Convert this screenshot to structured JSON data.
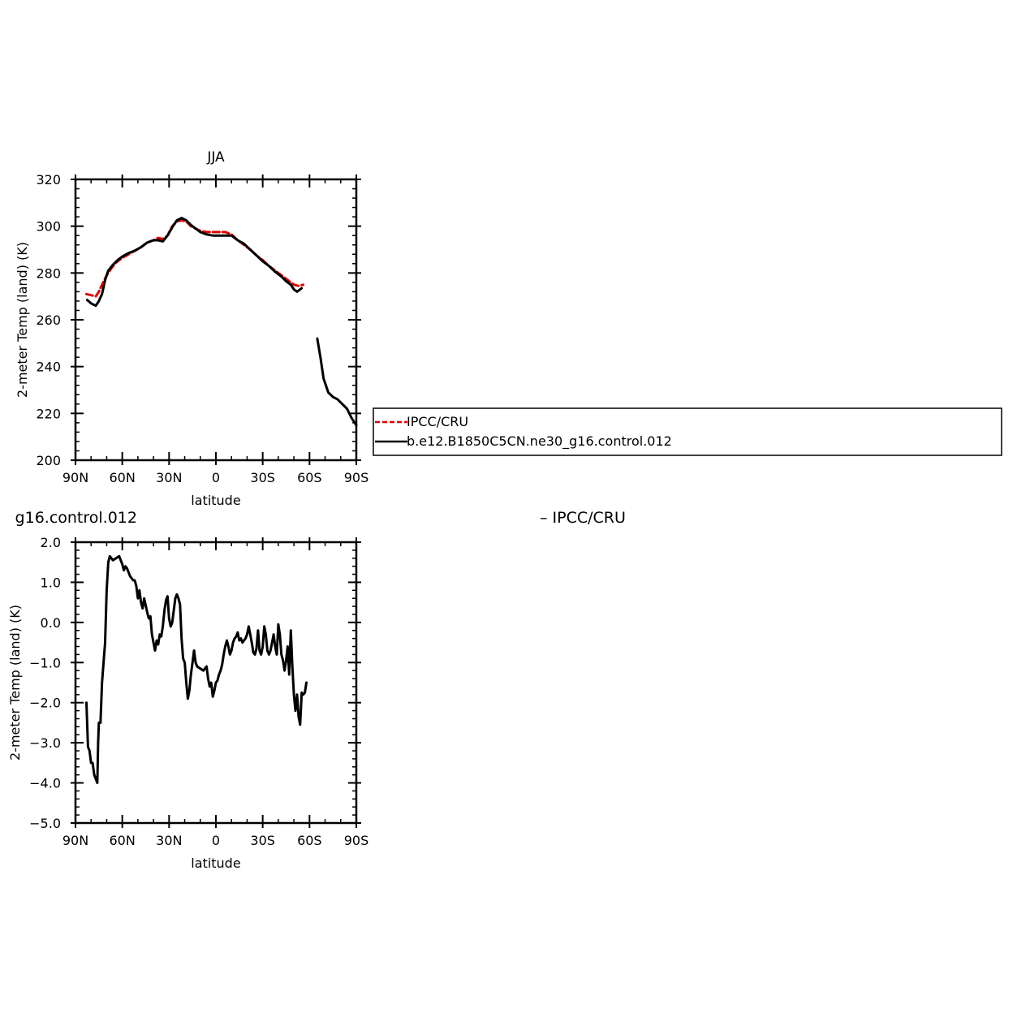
{
  "chart_data": [
    {
      "type": "line",
      "title": "JJA",
      "xlabel": "latitude",
      "ylabel": "2-meter Temp (land) (K)",
      "xlim": [
        90,
        -90
      ],
      "ylim": [
        200,
        320
      ],
      "x_tick_values": [
        90,
        60,
        30,
        0,
        -30,
        -60,
        -90
      ],
      "x_tick_labels": [
        "90N",
        "60N",
        "30N",
        "0",
        "30S",
        "60S",
        "90S"
      ],
      "y_tick_values": [
        200,
        220,
        240,
        260,
        280,
        300,
        320
      ],
      "y_tick_labels": [
        "200",
        "220",
        "240",
        "260",
        "280",
        "300",
        "320"
      ],
      "legend": {
        "placement": "right",
        "entries": [
          "IPCC/CRU",
          "b.e12.B1850C5CN.ne30_g16.control.012"
        ]
      },
      "series": [
        {
          "name": "IPCC/CRU",
          "color": "#e00000",
          "dash": true,
          "segments": [
            [
              [
                83,
                271
              ],
              [
                80,
                270.5
              ],
              [
                77,
                270
              ],
              [
                75,
                272
              ],
              [
                73,
                275
              ],
              [
                70,
                279
              ],
              [
                67,
                282
              ],
              [
                64,
                284.5
              ],
              [
                60,
                286.5
              ],
              [
                56,
                288
              ],
              [
                52,
                289.5
              ],
              [
                48,
                291
              ],
              [
                44,
                293
              ],
              [
                40,
                294
              ],
              [
                37,
                295
              ],
              [
                34,
                294.5
              ],
              [
                31,
                296
              ],
              [
                28,
                300
              ],
              [
                25,
                302
              ],
              [
                22,
                302.5
              ],
              [
                19,
                302
              ],
              [
                16,
                300
              ],
              [
                13,
                299
              ],
              [
                10,
                298
              ],
              [
                6,
                297.5
              ],
              [
                2,
                297.5
              ],
              [
                -2,
                297.5
              ],
              [
                -6,
                297.5
              ],
              [
                -10,
                296.5
              ],
              [
                -14,
                294
              ],
              [
                -18,
                292
              ],
              [
                -22,
                290
              ],
              [
                -26,
                287.5
              ],
              [
                -30,
                285.5
              ],
              [
                -34,
                283
              ],
              [
                -38,
                281
              ],
              [
                -42,
                279
              ],
              [
                -46,
                277
              ],
              [
                -50,
                275
              ],
              [
                -53,
                274.5
              ],
              [
                -56,
                275
              ]
            ]
          ]
        },
        {
          "name": "b.e12.B1850C5CN.ne30_g16.control.012",
          "color": "#000000",
          "dash": false,
          "segments": [
            [
              [
                82.5,
                268.5
              ],
              [
                80,
                267
              ],
              [
                77,
                266
              ],
              [
                75,
                268
              ],
              [
                73,
                271
              ],
              [
                71,
                277
              ],
              [
                69,
                281
              ],
              [
                66,
                283.5
              ],
              [
                63,
                285.5
              ],
              [
                60,
                287
              ],
              [
                56,
                288.5
              ],
              [
                52,
                289.5
              ],
              [
                48,
                291
              ],
              [
                44,
                293
              ],
              [
                40,
                294
              ],
              [
                37,
                294
              ],
              [
                34,
                293.5
              ],
              [
                31,
                296
              ],
              [
                28,
                299.5
              ],
              [
                25,
                302.5
              ],
              [
                22,
                303.5
              ],
              [
                19,
                302.5
              ],
              [
                16,
                300.5
              ],
              [
                13,
                299
              ],
              [
                10,
                297.5
              ],
              [
                6,
                296.5
              ],
              [
                2,
                296
              ],
              [
                -2,
                296
              ],
              [
                -6,
                296
              ],
              [
                -10,
                296
              ],
              [
                -14,
                294
              ],
              [
                -18,
                292.5
              ],
              [
                -22,
                290
              ],
              [
                -26,
                287.5
              ],
              [
                -30,
                285
              ],
              [
                -34,
                283
              ],
              [
                -38,
                280.5
              ],
              [
                -42,
                278.5
              ],
              [
                -45,
                276.5
              ],
              [
                -48,
                275
              ],
              [
                -50,
                273
              ],
              [
                -52,
                272
              ],
              [
                -55,
                273.5
              ]
            ],
            [
              [
                -65,
                252
              ],
              [
                -67,
                244
              ],
              [
                -69,
                235
              ],
              [
                -72,
                229
              ],
              [
                -75,
                227
              ],
              [
                -78,
                226
              ],
              [
                -81,
                224
              ],
              [
                -84,
                222
              ],
              [
                -87,
                218
              ],
              [
                -90,
                215
              ]
            ]
          ]
        }
      ]
    },
    {
      "type": "line",
      "title": "g16.control.012",
      "subtitle": "– IPCC/CRU",
      "xlabel": "latitude",
      "ylabel": "2-meter Temp (land) (K)",
      "xlim": [
        90,
        -90
      ],
      "ylim": [
        -5,
        2
      ],
      "x_tick_values": [
        90,
        60,
        30,
        0,
        -30,
        -60,
        -90
      ],
      "x_tick_labels": [
        "90N",
        "60N",
        "30N",
        "0",
        "30S",
        "60S",
        "90S"
      ],
      "y_tick_values": [
        2,
        1,
        0,
        -1,
        -2,
        -3,
        -4,
        -5
      ],
      "y_tick_labels": [
        "2.0",
        "1.0",
        "0.0",
        "−1.0",
        "−2.0",
        "−3.0",
        "−4.0",
        "−5.0"
      ],
      "series": [
        {
          "color": "#000000",
          "dash": false,
          "segments": [
            [
              [
                83,
                -2.0
              ],
              [
                82,
                -3.1
              ],
              [
                81,
                -3.2
              ],
              [
                80,
                -3.5
              ],
              [
                79,
                -3.5
              ],
              [
                78,
                -3.8
              ],
              [
                77,
                -3.9
              ],
              [
                76,
                -4.0
              ],
              [
                75.5,
                -3.0
              ],
              [
                75,
                -2.5
              ],
              [
                74,
                -2.5
              ],
              [
                73,
                -1.5
              ],
              [
                72,
                -1.0
              ],
              [
                71,
                -0.5
              ],
              [
                70,
                0.8
              ],
              [
                69,
                1.5
              ],
              [
                68,
                1.65
              ],
              [
                66,
                1.55
              ],
              [
                64,
                1.6
              ],
              [
                62,
                1.65
              ],
              [
                61,
                1.55
              ],
              [
                60,
                1.45
              ],
              [
                59,
                1.3
              ],
              [
                58,
                1.4
              ],
              [
                57,
                1.35
              ],
              [
                55,
                1.15
              ],
              [
                53,
                1.05
              ],
              [
                52,
                1.05
              ],
              [
                51,
                0.9
              ],
              [
                50,
                0.6
              ],
              [
                49,
                0.8
              ],
              [
                48,
                0.5
              ],
              [
                47,
                0.35
              ],
              [
                46,
                0.6
              ],
              [
                44,
                0.25
              ],
              [
                43,
                0.1
              ],
              [
                42,
                0.15
              ],
              [
                41,
                -0.3
              ],
              [
                40,
                -0.5
              ],
              [
                39,
                -0.7
              ],
              [
                38,
                -0.45
              ],
              [
                37,
                -0.55
              ],
              [
                36,
                -0.3
              ],
              [
                35,
                -0.35
              ],
              [
                34,
                -0.1
              ],
              [
                33,
                0.3
              ],
              [
                32,
                0.55
              ],
              [
                31,
                0.65
              ],
              [
                30,
                0.1
              ],
              [
                29,
                -0.1
              ],
              [
                28,
                0.0
              ],
              [
                27,
                0.3
              ],
              [
                26,
                0.6
              ],
              [
                25,
                0.7
              ],
              [
                24,
                0.6
              ],
              [
                23,
                0.45
              ],
              [
                22,
                -0.4
              ],
              [
                21,
                -0.9
              ],
              [
                20,
                -1.0
              ],
              [
                19,
                -1.5
              ],
              [
                18,
                -1.9
              ],
              [
                17,
                -1.7
              ],
              [
                16,
                -1.3
              ],
              [
                15,
                -1.0
              ],
              [
                14,
                -0.7
              ],
              [
                13,
                -1.0
              ],
              [
                12,
                -1.1
              ],
              [
                10,
                -1.15
              ],
              [
                8,
                -1.2
              ],
              [
                7,
                -1.15
              ],
              [
                6,
                -1.1
              ],
              [
                5,
                -1.4
              ],
              [
                4,
                -1.6
              ],
              [
                3,
                -1.5
              ],
              [
                2,
                -1.85
              ],
              [
                1,
                -1.7
              ],
              [
                0,
                -1.5
              ],
              [
                -1,
                -1.45
              ],
              [
                -2,
                -1.3
              ],
              [
                -3,
                -1.2
              ],
              [
                -4,
                -1.05
              ],
              [
                -5,
                -0.8
              ],
              [
                -6,
                -0.6
              ],
              [
                -7,
                -0.45
              ],
              [
                -8,
                -0.6
              ],
              [
                -9,
                -0.8
              ],
              [
                -10,
                -0.7
              ],
              [
                -11,
                -0.5
              ],
              [
                -12,
                -0.4
              ],
              [
                -13,
                -0.35
              ],
              [
                -14,
                -0.25
              ],
              [
                -15,
                -0.45
              ],
              [
                -16,
                -0.4
              ],
              [
                -17,
                -0.5
              ],
              [
                -18,
                -0.45
              ],
              [
                -19,
                -0.4
              ],
              [
                -20,
                -0.3
              ],
              [
                -21,
                -0.1
              ],
              [
                -22,
                -0.3
              ],
              [
                -23,
                -0.5
              ],
              [
                -24,
                -0.75
              ],
              [
                -25,
                -0.8
              ],
              [
                -26,
                -0.65
              ],
              [
                -27,
                -0.2
              ],
              [
                -28,
                -0.7
              ],
              [
                -29,
                -0.8
              ],
              [
                -30,
                -0.6
              ],
              [
                -31,
                -0.1
              ],
              [
                -32,
                -0.3
              ],
              [
                -33,
                -0.7
              ],
              [
                -34,
                -0.8
              ],
              [
                -35,
                -0.7
              ],
              [
                -36,
                -0.5
              ],
              [
                -37,
                -0.3
              ],
              [
                -38,
                -0.6
              ],
              [
                -39,
                -0.8
              ],
              [
                -40,
                -0.05
              ],
              [
                -41,
                -0.3
              ],
              [
                -42,
                -0.8
              ],
              [
                -43,
                -0.95
              ],
              [
                -44,
                -1.2
              ],
              [
                -45,
                -0.95
              ],
              [
                -46,
                -0.6
              ],
              [
                -47,
                -1.3
              ],
              [
                -48,
                -0.2
              ],
              [
                -49,
                -1.1
              ],
              [
                -50,
                -1.8
              ],
              [
                -51,
                -2.2
              ],
              [
                -52,
                -1.8
              ],
              [
                -53,
                -2.35
              ],
              [
                -54,
                -2.55
              ],
              [
                -55,
                -1.75
              ],
              [
                -56,
                -1.8
              ],
              [
                -57,
                -1.75
              ],
              [
                -58,
                -1.5
              ]
            ]
          ]
        }
      ]
    }
  ]
}
